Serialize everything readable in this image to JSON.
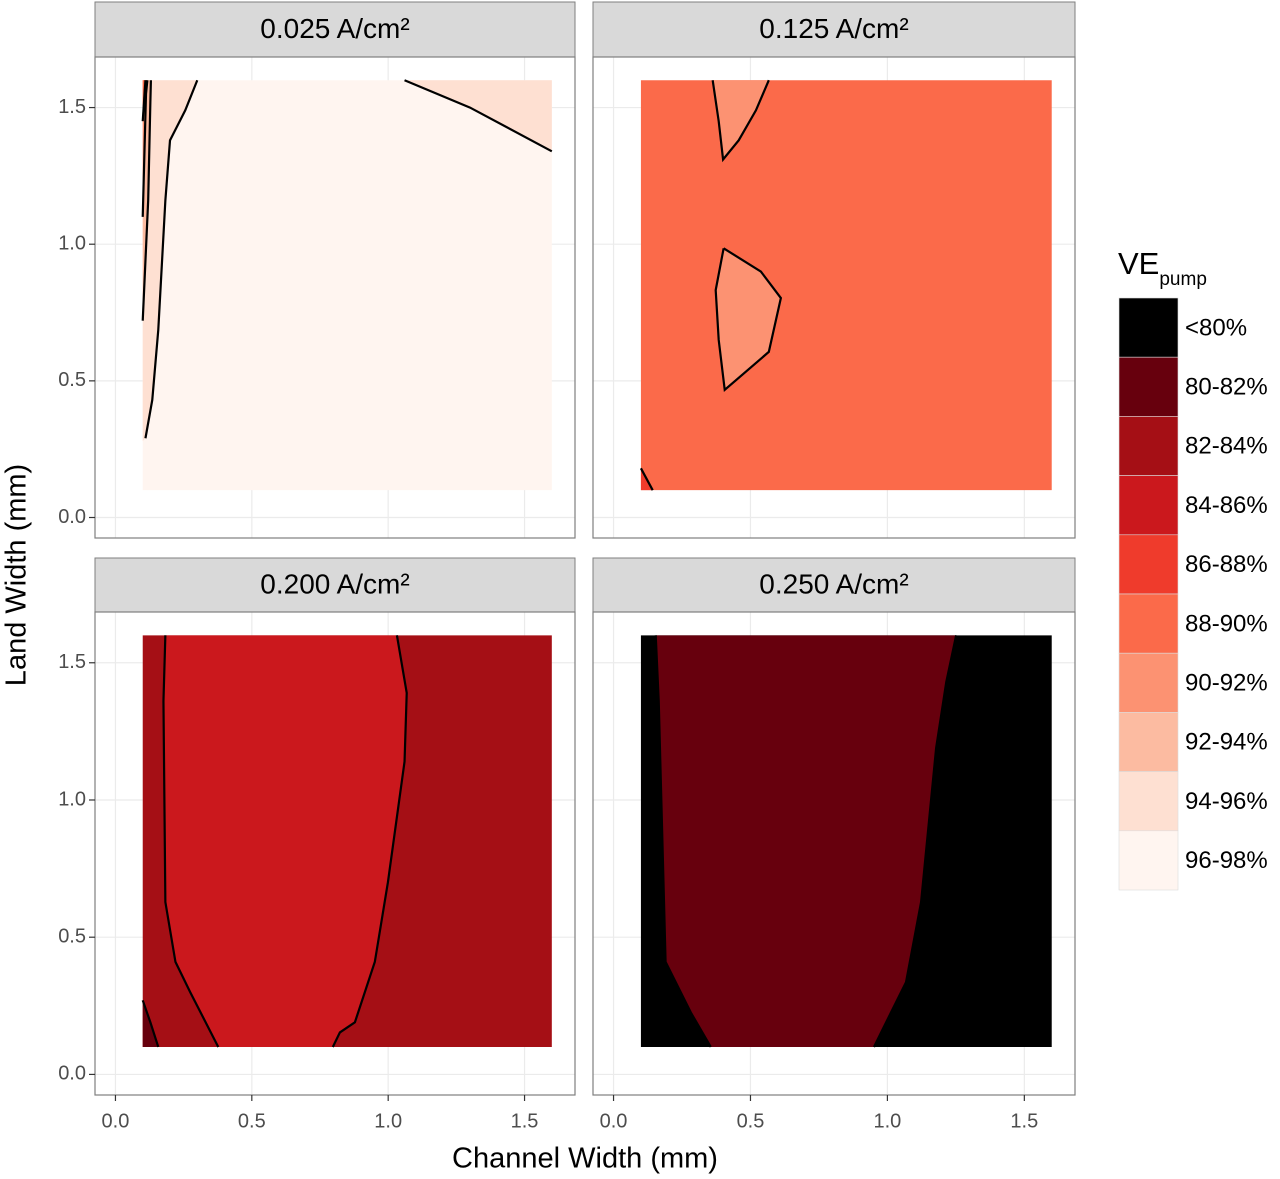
{
  "chart_data": {
    "type": "contour",
    "xlabel": "Channel Width (mm)",
    "ylabel": "Land Width (mm)",
    "xlim": [
      -0.075,
      1.685
    ],
    "ylim": [
      -0.075,
      1.685
    ],
    "xticks": [
      {
        "value": 0,
        "label": "0.0"
      },
      0.5,
      {
        "value": 1,
        "label": "1.0"
      },
      1.5
    ],
    "yticks": [
      {
        "value": 0,
        "label": "0.0"
      },
      0.5,
      {
        "value": 1,
        "label": "1.0"
      },
      1.5
    ],
    "grid": true,
    "legend_title": "VE",
    "legend_title_subscript": "pump",
    "legend": [
      {
        "name": "<80%",
        "color": "#000000"
      },
      {
        "name": "80-82%",
        "color": "#67000d"
      },
      {
        "name": "82-84%",
        "color": "#a50f15"
      },
      {
        "name": "84-86%",
        "color": "#cb181d"
      },
      {
        "name": "86-88%",
        "color": "#ef3b2c"
      },
      {
        "name": "88-90%",
        "color": "#fb6a4a"
      },
      {
        "name": "90-92%",
        "color": "#fc9272"
      },
      {
        "name": "92-94%",
        "color": "#fcbba1"
      },
      {
        "name": "94-96%",
        "color": "#fee0d2"
      },
      {
        "name": "96-98%",
        "color": "#fff5f0"
      }
    ],
    "facets": [
      {
        "title": "0.025 A/cm²",
        "regions": [
          {
            "color": "#fff5f0",
            "x": [
              0.1,
              1.6,
              1.6,
              0.1
            ],
            "y": [
              0.1,
              0.1,
              1.6,
              1.6
            ]
          },
          {
            "color": "#fee0d2",
            "x": [
              0.1,
              0.11,
              0.135,
              0.157,
              0.183,
              0.2,
              0.256,
              0.3,
              0.1
            ],
            "y": [
              0.28,
              0.29,
              0.43,
              0.686,
              1.16,
              1.38,
              1.49,
              1.6,
              1.6
            ]
          },
          {
            "color": "#fcbba1",
            "x": [
              0.1,
              0.12,
              0.128,
              0.13,
              0.1
            ],
            "y": [
              0.72,
              1.16,
              1.52,
              1.6,
              1.6
            ]
          },
          {
            "color": "#fc9272",
            "x": [
              0.1,
              0.112,
              0.117,
              0.1
            ],
            "y": [
              1.1,
              1.55,
              1.6,
              1.6
            ]
          },
          {
            "color": "#fb6a4a",
            "x": [
              0.1,
              0.11,
              0.1
            ],
            "y": [
              1.45,
              1.6,
              1.6
            ]
          },
          {
            "color": "#fee0d2",
            "x": [
              1.06,
              1.3,
              1.6,
              1.6
            ],
            "y": [
              1.6,
              1.5,
              1.34,
              1.6
            ]
          }
        ],
        "lines": [
          {
            "x": [
              0.11,
              0.135,
              0.157,
              0.183,
              0.2,
              0.256,
              0.3
            ],
            "y": [
              0.29,
              0.43,
              0.686,
              1.16,
              1.38,
              1.49,
              1.6
            ]
          },
          {
            "x": [
              0.1,
              0.12,
              0.128,
              0.13
            ],
            "y": [
              0.72,
              1.16,
              1.52,
              1.6
            ]
          },
          {
            "x": [
              0.1,
              0.112,
              0.117
            ],
            "y": [
              1.1,
              1.55,
              1.6
            ]
          },
          {
            "x": [
              0.1,
              0.11
            ],
            "y": [
              1.45,
              1.6
            ]
          },
          {
            "x": [
              1.06,
              1.3,
              1.6
            ],
            "y": [
              1.6,
              1.5,
              1.34
            ]
          }
        ]
      },
      {
        "title": "0.125 A/cm²",
        "regions": [
          {
            "color": "#fb6a4a",
            "x": [
              0.1,
              1.6,
              1.6,
              0.1
            ],
            "y": [
              0.1,
              0.1,
              1.6,
              1.6
            ]
          },
          {
            "color": "#fc9272",
            "x": [
              0.362,
              0.384,
              0.4,
              0.457,
              0.52,
              0.567
            ],
            "y": [
              1.6,
              1.45,
              1.31,
              1.38,
              1.49,
              1.6
            ]
          },
          {
            "color": "#fc9272",
            "x": [
              0.402,
              0.373,
              0.384,
              0.406,
              0.567,
              0.611,
              0.538,
              0.402
            ],
            "y": [
              0.985,
              0.832,
              0.65,
              0.467,
              0.606,
              0.803,
              0.9,
              0.985
            ]
          },
          {
            "color": "#ef3b2c",
            "x": [
              0.1,
              0.143,
              0.1
            ],
            "y": [
              0.18,
              0.1,
              0.1
            ]
          }
        ],
        "lines": [
          {
            "x": [
              0.362,
              0.384,
              0.4,
              0.457,
              0.52,
              0.567
            ],
            "y": [
              1.6,
              1.45,
              1.31,
              1.38,
              1.49,
              1.6
            ]
          },
          {
            "x": [
              0.402,
              0.373,
              0.384,
              0.406,
              0.567,
              0.611,
              0.538,
              0.402
            ],
            "y": [
              0.985,
              0.832,
              0.65,
              0.467,
              0.606,
              0.803,
              0.9,
              0.985
            ]
          },
          {
            "x": [
              0.1,
              0.143
            ],
            "y": [
              0.18,
              0.1
            ]
          }
        ]
      },
      {
        "title": "0.200 A/cm²",
        "regions": [
          {
            "color": "#a50f15",
            "x": [
              0.1,
              1.6,
              1.6,
              0.1
            ],
            "y": [
              0.1,
              0.1,
              1.6,
              1.6
            ]
          },
          {
            "color": "#cb181d",
            "x": [
              0.183,
              0.176,
              0.183,
              0.22,
              0.274,
              0.377,
              0.797,
              0.823,
              0.878,
              0.951,
              0.999,
              1.06,
              1.068,
              1.032
            ],
            "y": [
              1.6,
              1.36,
              0.628,
              0.41,
              0.3,
              0.1,
              0.1,
              0.153,
              0.19,
              0.41,
              0.7,
              1.14,
              1.39,
              1.6
            ]
          },
          {
            "color": "#67000d",
            "x": [
              0.1,
              0.128,
              0.157,
              0.1
            ],
            "y": [
              0.27,
              0.19,
              0.1,
              0.1
            ]
          }
        ],
        "lines": [
          {
            "x": [
              0.183,
              0.176,
              0.183,
              0.22,
              0.274,
              0.377
            ],
            "y": [
              1.6,
              1.36,
              0.628,
              0.41,
              0.3,
              0.1
            ]
          },
          {
            "x": [
              1.032,
              1.068,
              1.06,
              0.999,
              0.951,
              0.878,
              0.823,
              0.797
            ],
            "y": [
              1.6,
              1.39,
              1.14,
              0.7,
              0.41,
              0.19,
              0.153,
              0.1
            ]
          },
          {
            "x": [
              0.1,
              0.128,
              0.157
            ],
            "y": [
              0.27,
              0.19,
              0.1
            ]
          }
        ]
      },
      {
        "title": "0.250 A/cm²",
        "regions": [
          {
            "color": "#000000",
            "x": [
              0.1,
              1.6,
              1.6,
              0.1
            ],
            "y": [
              0.1,
              0.1,
              1.6,
              1.6
            ]
          },
          {
            "color": "#67000d",
            "x": [
              0.154,
              0.165,
              0.19,
              0.282,
              0.355,
              0.951,
              0.977,
              1.068,
              1.123,
              1.178,
              1.215,
              1.251
            ],
            "y": [
              1.6,
              1.36,
              0.41,
              0.226,
              0.1,
              0.1,
              0.153,
              0.336,
              0.628,
              1.19,
              1.43,
              1.6
            ]
          }
        ],
        "lines": [
          {
            "x": [
              0.154,
              0.165,
              0.19,
              0.282,
              0.355
            ],
            "y": [
              1.6,
              1.36,
              0.41,
              0.226,
              0.1
            ]
          },
          {
            "x": [
              1.251,
              1.215,
              1.178,
              1.123,
              1.068,
              0.977,
              0.951
            ],
            "y": [
              1.6,
              1.43,
              1.19,
              0.628,
              0.336,
              0.153,
              0.1
            ]
          }
        ]
      }
    ]
  }
}
